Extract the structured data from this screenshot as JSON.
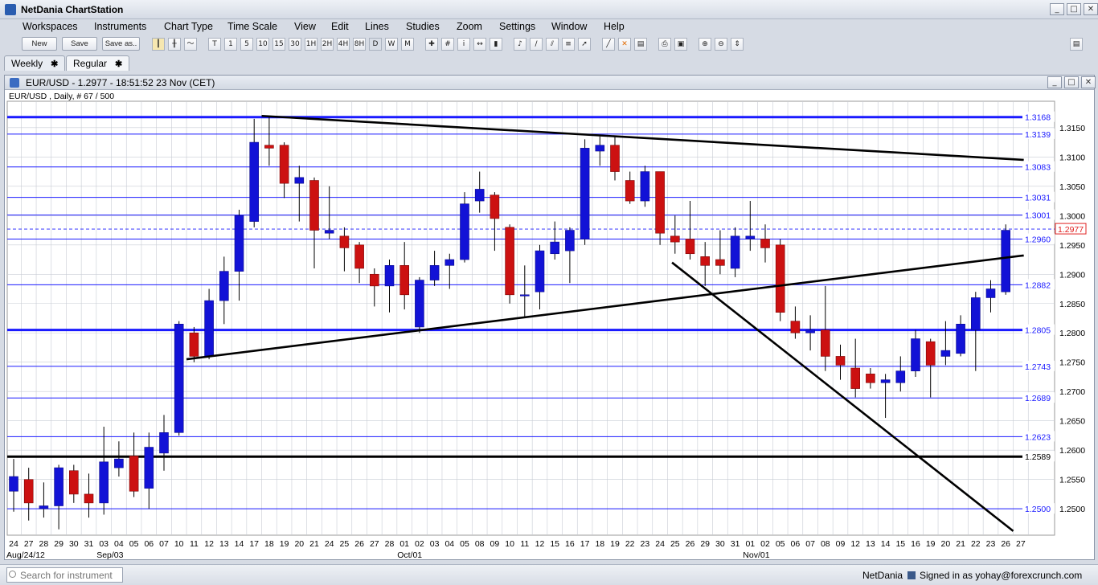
{
  "app": {
    "title": "NetDania ChartStation",
    "window_buttons": [
      "_",
      "□",
      "✕"
    ]
  },
  "menu": [
    "Workspaces",
    "Instruments",
    "Chart Type",
    "Time Scale",
    "View",
    "Edit",
    "Lines",
    "Studies",
    "Zoom",
    "Settings",
    "Window",
    "Help"
  ],
  "toolbar": {
    "new_label": "New",
    "save_label": "Save",
    "saveas_label": "Save as..",
    "timescales": [
      "T",
      "1",
      "5",
      "10",
      "15",
      "30",
      "1H",
      "2H",
      "4H",
      "8H",
      "D",
      "W",
      "M"
    ]
  },
  "tabs": [
    {
      "label": "Weekly",
      "active": false
    },
    {
      "label": "Regular",
      "active": true
    }
  ],
  "chart_window": {
    "title": "EUR/USD - 1.2977 - 18:51:52  23 Nov (CET)",
    "buttons": [
      "_",
      "□",
      "✕"
    ]
  },
  "chart_data": {
    "type": "candlestick",
    "instrument_label": "EUR/USD , Daily, # 67 / 500",
    "last_price": "1.2977",
    "ylim": [
      1.2455,
      1.3195
    ],
    "y_ticks": [
      1.25,
      1.255,
      1.26,
      1.265,
      1.27,
      1.275,
      1.28,
      1.285,
      1.29,
      1.295,
      1.3,
      1.305,
      1.31,
      1.315
    ],
    "x_tick_labels": [
      "24",
      "27",
      "28",
      "29",
      "30",
      "31",
      "03",
      "04",
      "05",
      "06",
      "07",
      "10",
      "11",
      "12",
      "13",
      "14",
      "17",
      "18",
      "19",
      "20",
      "21",
      "24",
      "25",
      "26",
      "27",
      "28",
      "01",
      "02",
      "03",
      "04",
      "05",
      "08",
      "09",
      "10",
      "11",
      "12",
      "15",
      "16",
      "17",
      "18",
      "19",
      "22",
      "23",
      "24",
      "25",
      "26",
      "29",
      "30",
      "31",
      "01",
      "02",
      "05",
      "06",
      "07",
      "08",
      "09",
      "12",
      "13",
      "14",
      "15",
      "16",
      "19",
      "20",
      "21",
      "22",
      "23",
      "26",
      "27"
    ],
    "month_labels": [
      {
        "index": 0,
        "label": "Aug/24/12"
      },
      {
        "index": 6,
        "label": "Sep/03"
      },
      {
        "index": 26,
        "label": "Oct/01"
      },
      {
        "index": 49,
        "label": "Nov/01"
      }
    ],
    "candles": [
      {
        "o": 1.253,
        "h": 1.2585,
        "l": 1.2495,
        "c": 1.2555
      },
      {
        "o": 1.255,
        "h": 1.257,
        "l": 1.248,
        "c": 1.251
      },
      {
        "o": 1.25,
        "h": 1.2545,
        "l": 1.2485,
        "c": 1.2505
      },
      {
        "o": 1.2505,
        "h": 1.2575,
        "l": 1.2465,
        "c": 1.257
      },
      {
        "o": 1.2565,
        "h": 1.2575,
        "l": 1.251,
        "c": 1.2525
      },
      {
        "o": 1.2525,
        "h": 1.256,
        "l": 1.2485,
        "c": 1.251
      },
      {
        "o": 1.251,
        "h": 1.264,
        "l": 1.249,
        "c": 1.258
      },
      {
        "o": 1.257,
        "h": 1.2615,
        "l": 1.2555,
        "c": 1.2585
      },
      {
        "o": 1.259,
        "h": 1.263,
        "l": 1.252,
        "c": 1.253
      },
      {
        "o": 1.2535,
        "h": 1.263,
        "l": 1.25,
        "c": 1.2605
      },
      {
        "o": 1.2595,
        "h": 1.266,
        "l": 1.2565,
        "c": 1.263
      },
      {
        "o": 1.263,
        "h": 1.282,
        "l": 1.2625,
        "c": 1.2815
      },
      {
        "o": 1.28,
        "h": 1.281,
        "l": 1.275,
        "c": 1.276
      },
      {
        "o": 1.276,
        "h": 1.2875,
        "l": 1.2755,
        "c": 1.2855
      },
      {
        "o": 1.2855,
        "h": 1.293,
        "l": 1.2815,
        "c": 1.2905
      },
      {
        "o": 1.2905,
        "h": 1.301,
        "l": 1.2855,
        "c": 1.3
      },
      {
        "o": 1.299,
        "h": 1.3165,
        "l": 1.298,
        "c": 1.3125
      },
      {
        "o": 1.312,
        "h": 1.317,
        "l": 1.3085,
        "c": 1.3115
      },
      {
        "o": 1.312,
        "h": 1.3125,
        "l": 1.303,
        "c": 1.3055
      },
      {
        "o": 1.3055,
        "h": 1.3085,
        "l": 1.299,
        "c": 1.3065
      },
      {
        "o": 1.306,
        "h": 1.3065,
        "l": 1.291,
        "c": 1.2975
      },
      {
        "o": 1.297,
        "h": 1.305,
        "l": 1.296,
        "c": 1.2975
      },
      {
        "o": 1.2965,
        "h": 1.298,
        "l": 1.2905,
        "c": 1.2945
      },
      {
        "o": 1.295,
        "h": 1.2955,
        "l": 1.2885,
        "c": 1.291
      },
      {
        "o": 1.29,
        "h": 1.291,
        "l": 1.2845,
        "c": 1.288
      },
      {
        "o": 1.288,
        "h": 1.2925,
        "l": 1.2835,
        "c": 1.2915
      },
      {
        "o": 1.2915,
        "h": 1.2955,
        "l": 1.284,
        "c": 1.2865
      },
      {
        "o": 1.281,
        "h": 1.2895,
        "l": 1.28,
        "c": 1.289
      },
      {
        "o": 1.289,
        "h": 1.294,
        "l": 1.288,
        "c": 1.2915
      },
      {
        "o": 1.2915,
        "h": 1.2935,
        "l": 1.2875,
        "c": 1.2925
      },
      {
        "o": 1.2925,
        "h": 1.304,
        "l": 1.292,
        "c": 1.302
      },
      {
        "o": 1.3025,
        "h": 1.3075,
        "l": 1.3005,
        "c": 1.3045
      },
      {
        "o": 1.3035,
        "h": 1.304,
        "l": 1.294,
        "c": 1.2995
      },
      {
        "o": 1.298,
        "h": 1.2985,
        "l": 1.285,
        "c": 1.2865
      },
      {
        "o": 1.2865,
        "h": 1.2915,
        "l": 1.2825,
        "c": 1.2865
      },
      {
        "o": 1.287,
        "h": 1.295,
        "l": 1.284,
        "c": 1.294
      },
      {
        "o": 1.2935,
        "h": 1.299,
        "l": 1.2925,
        "c": 1.2955
      },
      {
        "o": 1.294,
        "h": 1.298,
        "l": 1.2885,
        "c": 1.2975
      },
      {
        "o": 1.296,
        "h": 1.313,
        "l": 1.295,
        "c": 1.3115
      },
      {
        "o": 1.311,
        "h": 1.3135,
        "l": 1.3085,
        "c": 1.312
      },
      {
        "o": 1.312,
        "h": 1.3135,
        "l": 1.306,
        "c": 1.3075
      },
      {
        "o": 1.306,
        "h": 1.3075,
        "l": 1.302,
        "c": 1.3025
      },
      {
        "o": 1.3025,
        "h": 1.3085,
        "l": 1.3015,
        "c": 1.3075
      },
      {
        "o": 1.3075,
        "h": 1.3075,
        "l": 1.295,
        "c": 1.297
      },
      {
        "o": 1.2965,
        "h": 1.3,
        "l": 1.2935,
        "c": 1.2955
      },
      {
        "o": 1.296,
        "h": 1.3025,
        "l": 1.2925,
        "c": 1.2935
      },
      {
        "o": 1.293,
        "h": 1.2955,
        "l": 1.288,
        "c": 1.2915
      },
      {
        "o": 1.2925,
        "h": 1.2975,
        "l": 1.29,
        "c": 1.2915
      },
      {
        "o": 1.291,
        "h": 1.298,
        "l": 1.2895,
        "c": 1.2965
      },
      {
        "o": 1.296,
        "h": 1.3025,
        "l": 1.294,
        "c": 1.2965
      },
      {
        "o": 1.296,
        "h": 1.2985,
        "l": 1.292,
        "c": 1.2945
      },
      {
        "o": 1.295,
        "h": 1.296,
        "l": 1.282,
        "c": 1.2835
      },
      {
        "o": 1.282,
        "h": 1.2845,
        "l": 1.279,
        "c": 1.28
      },
      {
        "o": 1.28,
        "h": 1.283,
        "l": 1.277,
        "c": 1.2805
      },
      {
        "o": 1.2805,
        "h": 1.288,
        "l": 1.2735,
        "c": 1.276
      },
      {
        "o": 1.276,
        "h": 1.278,
        "l": 1.272,
        "c": 1.2745
      },
      {
        "o": 1.274,
        "h": 1.279,
        "l": 1.269,
        "c": 1.2705
      },
      {
        "o": 1.273,
        "h": 1.274,
        "l": 1.2705,
        "c": 1.2715
      },
      {
        "o": 1.2715,
        "h": 1.273,
        "l": 1.2655,
        "c": 1.272
      },
      {
        "o": 1.2715,
        "h": 1.276,
        "l": 1.27,
        "c": 1.2735
      },
      {
        "o": 1.2735,
        "h": 1.2805,
        "l": 1.2725,
        "c": 1.279
      },
      {
        "o": 1.2785,
        "h": 1.279,
        "l": 1.269,
        "c": 1.2745
      },
      {
        "o": 1.276,
        "h": 1.282,
        "l": 1.2745,
        "c": 1.277
      },
      {
        "o": 1.2765,
        "h": 1.283,
        "l": 1.276,
        "c": 1.2815
      },
      {
        "o": 1.2805,
        "h": 1.287,
        "l": 1.2735,
        "c": 1.286
      },
      {
        "o": 1.286,
        "h": 1.289,
        "l": 1.2835,
        "c": 1.2875
      },
      {
        "o": 1.287,
        "h": 1.2985,
        "l": 1.2865,
        "c": 1.2975
      }
    ],
    "horizontal_lines": [
      {
        "price": 1.3168,
        "label": "1.3168",
        "color": "#1a1aff",
        "thick": true
      },
      {
        "price": 1.3139,
        "label": "1.3139",
        "color": "#1a1aff",
        "thick": false
      },
      {
        "price": 1.3083,
        "label": "1.3083",
        "color": "#1a1aff",
        "thick": false
      },
      {
        "price": 1.3031,
        "label": "1.3031",
        "color": "#1a1aff",
        "thick": false
      },
      {
        "price": 1.3001,
        "label": "1.3001",
        "color": "#1a1aff",
        "thick": false
      },
      {
        "price": 1.296,
        "label": "1.2960",
        "color": "#1a1aff",
        "thick": false
      },
      {
        "price": 1.2882,
        "label": "1.2882",
        "color": "#1a1aff",
        "thick": false
      },
      {
        "price": 1.2805,
        "label": "1.2805",
        "color": "#1a1aff",
        "thick": true
      },
      {
        "price": 1.2743,
        "label": "1.2743",
        "color": "#1a1aff",
        "thick": false
      },
      {
        "price": 1.2689,
        "label": "1.2689",
        "color": "#1a1aff",
        "thick": false
      },
      {
        "price": 1.2623,
        "label": "1.2623",
        "color": "#1a1aff",
        "thick": false
      },
      {
        "price": 1.2589,
        "label": "1.2589",
        "color": "#000000",
        "thick": true
      },
      {
        "price": 1.25,
        "label": "1.2500",
        "color": "#1a1aff",
        "thick": false
      }
    ],
    "trend_lines": [
      {
        "x1": 16.5,
        "y1": 1.317,
        "x2": 67.2,
        "y2": 1.3095
      },
      {
        "x1": 11.5,
        "y1": 1.2755,
        "x2": 67.2,
        "y2": 1.2932
      },
      {
        "x1": 43.8,
        "y1": 1.292,
        "x2": 66.5,
        "y2": 1.2462
      }
    ],
    "colors": {
      "up": "#1212d6",
      "down": "#cc1111",
      "wick": "#000000",
      "price_marker": "#e02020",
      "grid": "#c8ccd4"
    }
  },
  "status": {
    "search_placeholder": "Search for instrument",
    "brand": "NetDania",
    "signed_in": "Signed in as yohay@forexcrunch.com"
  }
}
